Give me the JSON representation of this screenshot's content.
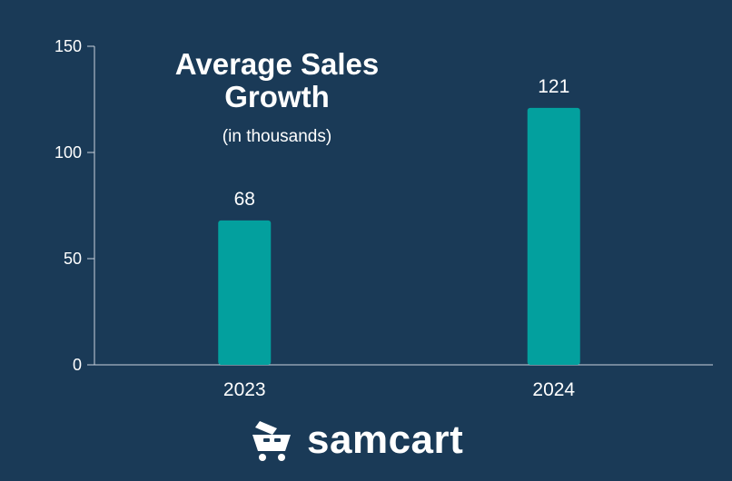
{
  "chart_data": {
    "type": "bar",
    "title_line1": "Average Sales",
    "title_line2": "Growth",
    "subtitle": "(in thousands)",
    "categories": [
      "2023",
      "2024"
    ],
    "values": [
      68,
      121
    ],
    "data_labels": [
      "68",
      "121"
    ],
    "ylim": [
      0,
      150
    ],
    "yticks": [
      0,
      50,
      100,
      150
    ],
    "ytick_labels": [
      "0",
      "50",
      "100",
      "150"
    ],
    "xlabel": "",
    "ylabel": "",
    "grid": false
  },
  "brand": {
    "name": "samcart",
    "icon": "shopping-cart-icon"
  },
  "colors": {
    "background": "#1a3a57",
    "bar": "#03a09e",
    "axis": "#c9d3dc",
    "text": "#ffffff"
  }
}
